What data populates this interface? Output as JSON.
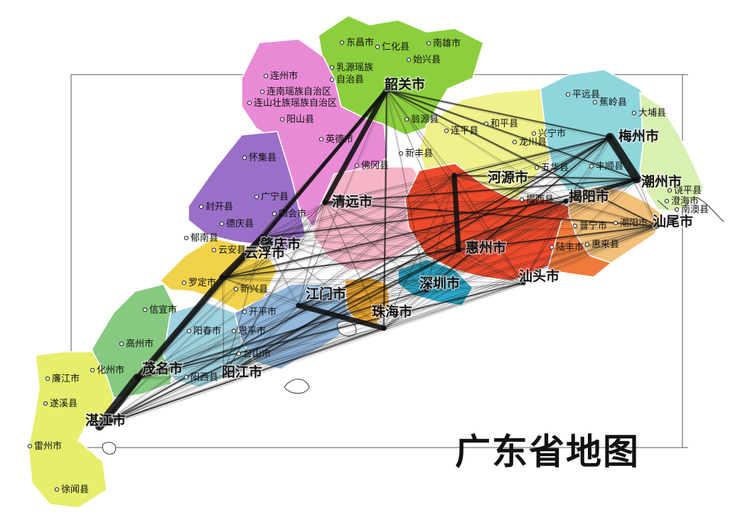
{
  "title": "广东省地图",
  "map": {
    "regions": [
      {
        "name": "shaoguan-region",
        "color": "#8ccf3e"
      },
      {
        "name": "qingyuan-region",
        "color": "#e98ad6"
      },
      {
        "name": "zhaoqing-region",
        "color": "#9a6fc8"
      },
      {
        "name": "heyuan-region",
        "color": "#f0f08c"
      },
      {
        "name": "meizhou-region",
        "color": "#8fd6dc"
      },
      {
        "name": "chaozhou-region",
        "color": "#d8f0b0"
      },
      {
        "name": "yunfu-region",
        "color": "#f2d24a"
      },
      {
        "name": "maoming-region",
        "color": "#86c980"
      },
      {
        "name": "zhanjiang-region",
        "color": "#e6ee6c"
      },
      {
        "name": "yangjiang-region",
        "color": "#9fd2e0"
      },
      {
        "name": "jiangmen-region",
        "color": "#93b8dc"
      },
      {
        "name": "guangzhou-region",
        "color": "#f4b6c6"
      },
      {
        "name": "huizhou-region",
        "color": "#ee4a2c"
      },
      {
        "name": "shanwei-region",
        "color": "#f07a3c"
      },
      {
        "name": "jieyang-region",
        "color": "#f3c07a"
      },
      {
        "name": "shenzhen-region",
        "color": "#2aa8c8"
      },
      {
        "name": "zhuhai-region",
        "color": "#f2a830"
      }
    ],
    "major_cities": [
      {
        "name": "韶关市"
      },
      {
        "name": "河源市"
      },
      {
        "name": "梅州市"
      },
      {
        "name": "潮州市"
      },
      {
        "name": "揭阳市"
      },
      {
        "name": "汕尾市"
      },
      {
        "name": "清远市"
      },
      {
        "name": "肇庆市"
      },
      {
        "name": "云浮市"
      },
      {
        "name": "茂名市"
      },
      {
        "name": "阳江市"
      },
      {
        "name": "湛江市"
      },
      {
        "name": "珠海市"
      },
      {
        "name": "江门市"
      },
      {
        "name": "惠州市"
      },
      {
        "name": "深圳市"
      },
      {
        "name": "汕头市"
      }
    ],
    "minor_labels": [
      {
        "name": "东昌市"
      },
      {
        "name": "仁化县"
      },
      {
        "name": "南雄市"
      },
      {
        "name": "始兴县"
      },
      {
        "name": "乳源瑶族"
      },
      {
        "name": "自治县"
      },
      {
        "name": "连州市"
      },
      {
        "name": "连南瑶族自治区"
      },
      {
        "name": "连山壮族瑶族自治区"
      },
      {
        "name": "阳山县"
      },
      {
        "name": "怀集县"
      },
      {
        "name": "封开县"
      },
      {
        "name": "广宁县"
      },
      {
        "name": "德庆县"
      },
      {
        "name": "郁南县"
      },
      {
        "name": "云安县"
      },
      {
        "name": "罗定市"
      },
      {
        "name": "新兴县"
      },
      {
        "name": "信宜市"
      },
      {
        "name": "高州市"
      },
      {
        "name": "化州市"
      },
      {
        "name": "廉江市"
      },
      {
        "name": "遂溪县"
      },
      {
        "name": "雷州市"
      },
      {
        "name": "徐闻县"
      },
      {
        "name": "连平县"
      },
      {
        "name": "和平县"
      },
      {
        "name": "龙川县"
      },
      {
        "name": "平远县"
      },
      {
        "name": "蕉岭县"
      },
      {
        "name": "大埔县"
      },
      {
        "name": "兴宁市"
      },
      {
        "name": "五华县"
      },
      {
        "name": "丰顺县"
      },
      {
        "name": "饶平县"
      },
      {
        "name": "澄海市"
      },
      {
        "name": "南澳县"
      },
      {
        "name": "潮阳市"
      },
      {
        "name": "惠来县"
      },
      {
        "name": "陆丰市"
      },
      {
        "name": "普宁市"
      },
      {
        "name": "翁源县"
      },
      {
        "name": "新丰县"
      },
      {
        "name": "英德市"
      },
      {
        "name": "佛冈县"
      },
      {
        "name": "阳春市"
      },
      {
        "name": "恩平市"
      },
      {
        "name": "开平市"
      },
      {
        "name": "台山市"
      },
      {
        "name": "阳西县"
      },
      {
        "name": "四会市"
      },
      {
        "name": "揭西县"
      }
    ],
    "flow_lines": [
      {
        "from": "湛江市",
        "to": "茂名市",
        "weight": 5
      },
      {
        "from": "茂名市",
        "to": "云浮市",
        "weight": 3
      },
      {
        "from": "云浮市",
        "to": "肇庆市",
        "weight": 4
      },
      {
        "from": "肇庆市",
        "to": "韶关市",
        "weight": 2
      },
      {
        "from": "韶关市",
        "to": "清远市",
        "weight": 3
      },
      {
        "from": "河源市",
        "to": "惠州市",
        "weight": 3
      },
      {
        "from": "梅州市",
        "to": "潮州市",
        "weight": 5
      },
      {
        "from": "潮州市",
        "to": "揭阳市",
        "weight": 2
      },
      {
        "from": "珠海市",
        "to": "江门市",
        "weight": 3
      },
      {
        "from": "湛江市",
        "to": "珠海市",
        "weight": 1
      },
      {
        "from": "湛江市",
        "to": "惠州市",
        "weight": 1
      },
      {
        "from": "湛江市",
        "to": "梅州市",
        "weight": 1
      },
      {
        "from": "湛江市",
        "to": "韶关市",
        "weight": 1
      },
      {
        "from": "韶关市",
        "to": "梅州市",
        "weight": 1
      },
      {
        "from": "韶关市",
        "to": "潮州市",
        "weight": 1
      },
      {
        "from": "韶关市",
        "to": "汕尾市",
        "weight": 1
      },
      {
        "from": "韶关市",
        "to": "珠海市",
        "weight": 1
      },
      {
        "from": "河源市",
        "to": "梅州市",
        "weight": 1
      },
      {
        "from": "河源市",
        "to": "潮州市",
        "weight": 1
      },
      {
        "from": "云浮市",
        "to": "潮州市",
        "weight": 1
      },
      {
        "from": "云浮市",
        "to": "汕尾市",
        "weight": 1
      },
      {
        "from": "肇庆市",
        "to": "揭阳市",
        "weight": 1
      },
      {
        "from": "江门市",
        "to": "揭阳市",
        "weight": 1
      },
      {
        "from": "阳江市",
        "to": "惠州市",
        "weight": 1
      },
      {
        "from": "阳江市",
        "to": "梅州市",
        "weight": 1
      },
      {
        "from": "茂名市",
        "to": "深圳市",
        "weight": 1
      },
      {
        "from": "茂名市",
        "to": "汕头市",
        "weight": 1
      },
      {
        "from": "清远市",
        "to": "汕尾市",
        "weight": 1
      },
      {
        "from": "清远市",
        "to": "潮州市",
        "weight": 1
      },
      {
        "from": "深圳市",
        "to": "梅州市",
        "weight": 1
      }
    ]
  }
}
